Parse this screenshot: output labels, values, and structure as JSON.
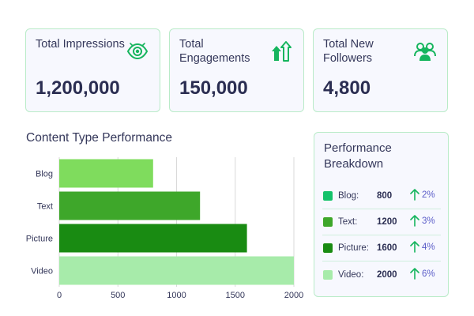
{
  "stats": [
    {
      "label": "Total Impressions",
      "value": "1,200,000",
      "icon": "eye-icon"
    },
    {
      "label": "Total Engagements",
      "value": "150,000",
      "icon": "trending-arrows-icon"
    },
    {
      "label": "Total New Followers",
      "value": "4,800",
      "icon": "users-icon"
    }
  ],
  "chart_title": "Content Type Performance",
  "chart_data": {
    "type": "bar",
    "orientation": "horizontal",
    "categories": [
      "Blog",
      "Text",
      "Picture",
      "Video"
    ],
    "values": [
      800,
      1200,
      1600,
      2000
    ],
    "colors": [
      "#7fdc5d",
      "#3ea72a",
      "#198b12",
      "#a7ebaa"
    ],
    "xlim": [
      0,
      2000
    ],
    "xticks": [
      "0",
      "500",
      "1000",
      "1500",
      "2000"
    ],
    "grid": "vertical",
    "title": "Content Type Performance",
    "xlabel": "",
    "ylabel": ""
  },
  "breakdown": {
    "title": "Performance Breakdown",
    "rows": [
      {
        "name": "Blog:",
        "value": "800",
        "change": "2%",
        "color": "#14c26a"
      },
      {
        "name": "Text:",
        "value": "1200",
        "change": "3%",
        "color": "#3ea72a"
      },
      {
        "name": "Picture:",
        "value": "1600",
        "change": "4%",
        "color": "#198b12"
      },
      {
        "name": "Video:",
        "value": "2000",
        "change": "6%",
        "color": "#a7ebaa"
      }
    ]
  },
  "accent_color": "#16b55e"
}
